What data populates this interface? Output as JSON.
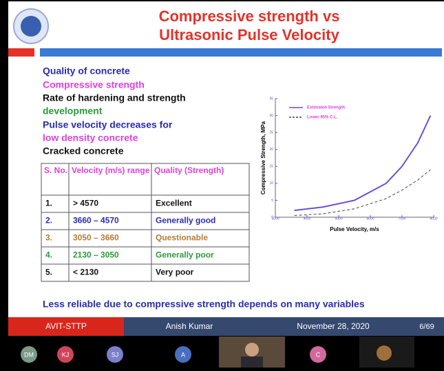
{
  "slide": {
    "title_lines": [
      "Compressive strength vs",
      "Ultrasonic Pulse Velocity"
    ],
    "points": [
      "Quality of concrete",
      "Compressive strength",
      "Rate of hardening and strength",
      "development",
      "Pulse velocity decreases for",
      "low density concrete",
      "Cracked concrete"
    ],
    "table": {
      "header": [
        "S. No.",
        "Velocity (m/s) range",
        "Quality (Strength)"
      ],
      "rows": [
        [
          "1.",
          "> 4570",
          "Excellent"
        ],
        [
          "2.",
          "3660 – 4570",
          "Generally good"
        ],
        [
          "3.",
          "3050 – 3660",
          "Questionable"
        ],
        [
          "4.",
          "2130 – 3050",
          "Generally poor"
        ],
        [
          "5.",
          "< 2130",
          "Very poor"
        ]
      ]
    },
    "note": "Less  reliable due to compressive strength depends on many variables"
  },
  "chart_data": {
    "type": "line",
    "x_label": "Pulse Velocity, m/s",
    "y_label": "Compressive Strength, MPa",
    "xlim": [
      3000,
      8000
    ],
    "xticks": [
      3000,
      4000,
      5000,
      6000,
      7000,
      8000
    ],
    "ylim": [
      0,
      35
    ],
    "yticks": [
      0,
      5,
      10,
      15,
      20,
      25,
      30,
      35
    ],
    "x": [
      3600,
      4500,
      5500,
      6500,
      7000,
      7500,
      7900
    ],
    "series": [
      {
        "name": "Estimated Strength",
        "color": "#6a4fd8",
        "dashed": false,
        "values": [
          2,
          3,
          5,
          10,
          15,
          22,
          30
        ]
      },
      {
        "name": "Lower 95% C.L.",
        "color": "#444444",
        "dashed": true,
        "values": [
          0.5,
          1,
          2.5,
          5.5,
          8,
          11,
          14
        ]
      }
    ]
  },
  "footer": {
    "left": "AVIT-STTP",
    "presenter": "Anish Kumar",
    "date": "November 28, 2020",
    "page": "6/69"
  },
  "participants": [
    "DM",
    "KJ",
    "SJ",
    "A",
    "C"
  ]
}
